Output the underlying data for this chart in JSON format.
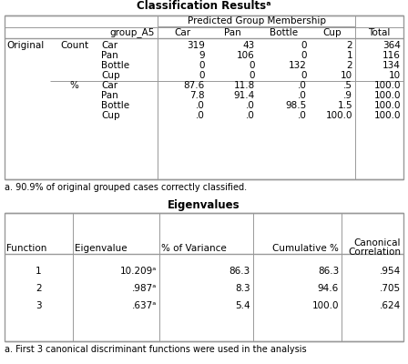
{
  "title1": "Classification Resultsᵃ",
  "title1_bold": true,
  "table1_pgm_header": "Predicted Group Membership",
  "table1_col_headers": [
    "group_A5",
    "Car",
    "Pan",
    "Bottle",
    "Cup",
    "Total"
  ],
  "table1_rows": [
    [
      "Original",
      "Count",
      "Car",
      "319",
      "43",
      "0",
      "2",
      "364"
    ],
    [
      "",
      "",
      "Pan",
      "9",
      "106",
      "0",
      "1",
      "116"
    ],
    [
      "",
      "",
      "Bottle",
      "0",
      "0",
      "132",
      "2",
      "134"
    ],
    [
      "",
      "",
      "Cup",
      "0",
      "0",
      "0",
      "10",
      "10"
    ],
    [
      "",
      "%",
      "Car",
      "87.6",
      "11.8",
      ".0",
      ".5",
      "100.0"
    ],
    [
      "",
      "",
      "Pan",
      "7.8",
      "91.4",
      ".0",
      ".9",
      "100.0"
    ],
    [
      "",
      "",
      "Bottle",
      ".0",
      ".0",
      "98.5",
      "1.5",
      "100.0"
    ],
    [
      "",
      "",
      "Cup",
      ".0",
      ".0",
      ".0",
      "100.0",
      "100.0"
    ]
  ],
  "table1_footnote": "a. 90.9% of original grouped cases correctly classified.",
  "title2": "Eigenvalues",
  "table2_headers": [
    "Function",
    "Eigenvalue",
    "% of Variance",
    "Cumulative %",
    "Canonical\nCorrelation"
  ],
  "table2_rows": [
    [
      "1",
      "10.209ᵃ",
      "86.3",
      "86.3",
      ".954"
    ],
    [
      "2",
      ".987ᵃ",
      "8.3",
      "94.6",
      ".705"
    ],
    [
      "3",
      ".637ᵃ",
      "5.4",
      "100.0",
      ".624"
    ]
  ],
  "table2_footnote": "a. First 3 canonical discriminant functions were used in the analysis",
  "bg_color": "#ffffff",
  "table_bg": "#ffffff",
  "border_color": "#999999",
  "text_color": "#000000"
}
